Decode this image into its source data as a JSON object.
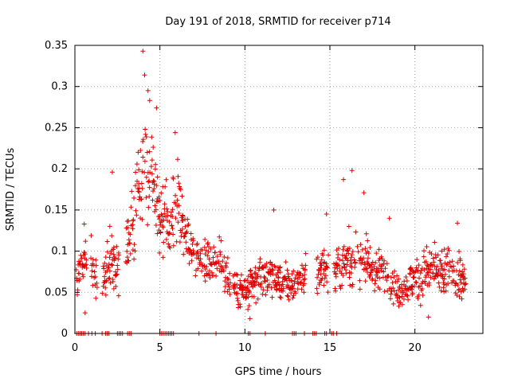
{
  "chart_data": {
    "type": "scatter",
    "title": "Day 191 of 2018, SRMTID for receiver p714",
    "xlabel": "GPS time / hours",
    "ylabel": "SRMTID / TECUs",
    "xlim": [
      0,
      24
    ],
    "ylim": [
      0,
      0.35
    ],
    "xticks": [
      0,
      5,
      10,
      15,
      20
    ],
    "yticks": [
      0,
      0.05,
      0.1,
      0.15,
      0.2,
      0.25,
      0.3,
      0.35
    ],
    "ytick_labels": [
      "0",
      "0.05",
      "0.1",
      "0.15",
      "0.2",
      "0.25",
      "0.3",
      "0.35"
    ],
    "grid": true,
    "marker": "+",
    "color": "#e00000",
    "envelope": {
      "description": "typical value band of the scatter cloud vs time (hours)",
      "time": [
        0.0,
        0.5,
        1.0,
        1.5,
        2.0,
        2.5,
        3.0,
        3.5,
        4.0,
        4.5,
        5.0,
        5.5,
        6.0,
        6.5,
        7.0,
        7.5,
        8.0,
        8.5,
        9.0,
        9.5,
        10.0,
        10.5,
        11.0,
        11.5,
        12.0,
        12.5,
        13.0,
        13.5,
        14.0,
        14.5,
        15.0,
        15.5,
        16.0,
        16.5,
        17.0,
        17.5,
        18.0,
        18.5,
        19.0,
        19.5,
        20.0,
        20.5,
        21.0,
        21.5,
        22.0,
        22.5,
        23.0
      ],
      "center": [
        0.06,
        0.09,
        0.08,
        0.07,
        0.09,
        0.08,
        0.1,
        0.14,
        0.2,
        0.21,
        0.14,
        0.13,
        0.16,
        0.12,
        0.1,
        0.09,
        0.09,
        0.085,
        0.07,
        0.055,
        0.05,
        0.06,
        0.07,
        0.07,
        0.065,
        0.06,
        0.06,
        0.07,
        0.075,
        0.08,
        0.08,
        0.08,
        0.085,
        0.09,
        0.09,
        0.08,
        0.075,
        0.07,
        0.05,
        0.06,
        0.065,
        0.07,
        0.075,
        0.07,
        0.075,
        0.07,
        0.06
      ],
      "spread": [
        0.02,
        0.03,
        0.03,
        0.02,
        0.04,
        0.03,
        0.04,
        0.05,
        0.06,
        0.05,
        0.04,
        0.04,
        0.05,
        0.03,
        0.025,
        0.025,
        0.025,
        0.025,
        0.025,
        0.025,
        0.02,
        0.025,
        0.025,
        0.025,
        0.02,
        0.02,
        0.02,
        0.02,
        0.02,
        0.025,
        0.025,
        0.03,
        0.03,
        0.03,
        0.03,
        0.03,
        0.025,
        0.025,
        0.02,
        0.025,
        0.025,
        0.03,
        0.03,
        0.03,
        0.03,
        0.03,
        0.025
      ]
    },
    "notable_points": [
      {
        "x": 4.0,
        "y": 0.343
      },
      {
        "x": 4.1,
        "y": 0.314
      },
      {
        "x": 4.3,
        "y": 0.295
      },
      {
        "x": 4.4,
        "y": 0.283
      },
      {
        "x": 4.8,
        "y": 0.274
      },
      {
        "x": 5.9,
        "y": 0.244
      },
      {
        "x": 2.2,
        "y": 0.196
      },
      {
        "x": 16.3,
        "y": 0.198
      },
      {
        "x": 15.8,
        "y": 0.187
      },
      {
        "x": 17.0,
        "y": 0.171
      },
      {
        "x": 11.7,
        "y": 0.15
      },
      {
        "x": 14.8,
        "y": 0.145
      },
      {
        "x": 18.5,
        "y": 0.14
      },
      {
        "x": 0.55,
        "y": 0.133
      },
      {
        "x": 22.5,
        "y": 0.134
      },
      {
        "x": 0.6,
        "y": 0.025
      },
      {
        "x": 10.3,
        "y": 0.018
      },
      {
        "x": 20.8,
        "y": 0.02
      }
    ],
    "zero_points_x": [
      0.1,
      0.2,
      0.3,
      0.4,
      0.5,
      0.6,
      0.8,
      1.0,
      1.2,
      1.6,
      1.8,
      1.9,
      2.0,
      2.5,
      2.6,
      2.7,
      2.8,
      3.1,
      3.2,
      3.3,
      5.0,
      5.1,
      5.2,
      5.3,
      5.4,
      5.5,
      5.6,
      5.7,
      5.8,
      7.3,
      8.3,
      10.2,
      10.3,
      11.2,
      12.8,
      12.9,
      13.0,
      13.5,
      14.0,
      14.1,
      14.2,
      14.7,
      14.8,
      15.1,
      15.2,
      15.4
    ]
  }
}
